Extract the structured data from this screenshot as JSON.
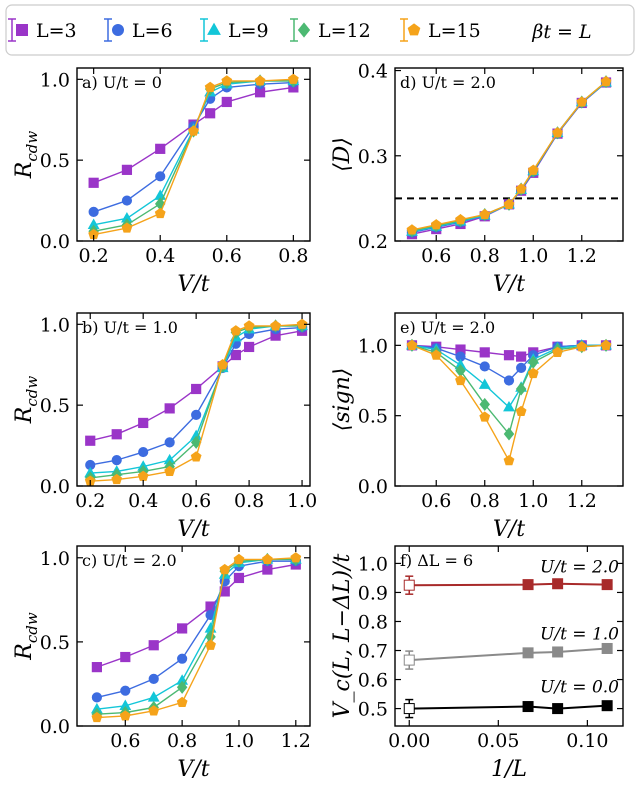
{
  "colors": {
    "L3": "#9a35c8",
    "L6": "#3d6ce0",
    "L9": "#13c6d8",
    "L12": "#4cb972",
    "L15": "#f5a31a",
    "U2": "#a82a2a",
    "U1": "#8a8a8a",
    "U0": "#000000"
  },
  "legend": {
    "entries": [
      {
        "key": "L3",
        "label": "L=3",
        "marker": "square"
      },
      {
        "key": "L6",
        "label": "L=6",
        "marker": "circle"
      },
      {
        "key": "L9",
        "label": "L=9",
        "marker": "triangle"
      },
      {
        "key": "L12",
        "label": "L=12",
        "marker": "diamond"
      },
      {
        "key": "L15",
        "label": "L=15",
        "marker": "pentagon"
      }
    ],
    "note": "βt = L"
  },
  "chart_data": [
    {
      "id": "a",
      "type": "line",
      "tag": "a) U/t = 0",
      "xlabel": "V/t",
      "ylabel": "R_cdw",
      "xlim": [
        0.15,
        0.85
      ],
      "ylim": [
        0.0,
        1.07
      ],
      "xticks": [
        "0.2",
        "0.4",
        "0.6",
        "0.8"
      ],
      "yticks": [
        "0.0",
        "0.5",
        "1.0"
      ],
      "x": [
        0.2,
        0.3,
        0.4,
        0.5,
        0.55,
        0.6,
        0.7,
        0.8
      ],
      "series": [
        {
          "key": "L3",
          "name": "L=3",
          "values": [
            0.36,
            0.44,
            0.57,
            0.72,
            0.79,
            0.86,
            0.92,
            0.95
          ]
        },
        {
          "key": "L6",
          "name": "L=6",
          "values": [
            0.18,
            0.25,
            0.4,
            0.71,
            0.88,
            0.95,
            0.97,
            0.98
          ]
        },
        {
          "key": "L9",
          "name": "L=9",
          "values": [
            0.1,
            0.14,
            0.28,
            0.69,
            0.92,
            0.97,
            0.99,
            0.99
          ]
        },
        {
          "key": "L12",
          "name": "L=12",
          "values": [
            0.06,
            0.1,
            0.23,
            0.68,
            0.94,
            0.98,
            0.99,
            0.99
          ]
        },
        {
          "key": "L15",
          "name": "L=15",
          "values": [
            0.04,
            0.08,
            0.17,
            0.68,
            0.95,
            0.99,
            0.99,
            1.0
          ]
        }
      ]
    },
    {
      "id": "d",
      "type": "line",
      "tag": "d) U/t = 2.0",
      "xlabel": "V/t",
      "ylabel": "⟨D⟩",
      "xlim": [
        0.43,
        1.37
      ],
      "ylim": [
        0.2,
        0.403
      ],
      "xticks": [
        "0.6",
        "0.8",
        "1.0",
        "1.2"
      ],
      "yticks": [
        "0.2",
        "0.3",
        "0.4"
      ],
      "hline": 0.25,
      "x": [
        0.5,
        0.6,
        0.7,
        0.8,
        0.9,
        0.95,
        1.0,
        1.1,
        1.2,
        1.3
      ],
      "series": [
        {
          "key": "L3",
          "name": "L=3",
          "values": [
            0.208,
            0.214,
            0.22,
            0.229,
            0.243,
            0.259,
            0.28,
            0.326,
            0.362,
            0.386
          ]
        },
        {
          "key": "L6",
          "name": "L=6",
          "values": [
            0.21,
            0.216,
            0.222,
            0.23,
            0.243,
            0.26,
            0.281,
            0.326,
            0.362,
            0.386
          ]
        },
        {
          "key": "L9",
          "name": "L=9",
          "values": [
            0.211,
            0.217,
            0.223,
            0.23,
            0.243,
            0.26,
            0.282,
            0.327,
            0.363,
            0.386
          ]
        },
        {
          "key": "L12",
          "name": "L=12",
          "values": [
            0.212,
            0.218,
            0.224,
            0.231,
            0.243,
            0.261,
            0.282,
            0.327,
            0.363,
            0.387
          ]
        },
        {
          "key": "L15",
          "name": "L=15",
          "values": [
            0.213,
            0.219,
            0.225,
            0.231,
            0.243,
            0.261,
            0.283,
            0.327,
            0.363,
            0.387
          ]
        }
      ]
    },
    {
      "id": "b",
      "type": "line",
      "tag": "b) U/t = 1.0",
      "xlabel": "V/t",
      "ylabel": "R_cdw",
      "xlim": [
        0.15,
        1.03
      ],
      "ylim": [
        0.0,
        1.07
      ],
      "xticks": [
        "0.2",
        "0.4",
        "0.6",
        "0.8",
        "1.0"
      ],
      "yticks": [
        "0.0",
        "0.5",
        "1.0"
      ],
      "x": [
        0.2,
        0.3,
        0.4,
        0.5,
        0.6,
        0.7,
        0.75,
        0.8,
        0.9,
        1.0
      ],
      "series": [
        {
          "key": "L3",
          "name": "L=3",
          "values": [
            0.28,
            0.32,
            0.39,
            0.48,
            0.6,
            0.74,
            0.81,
            0.86,
            0.93,
            0.96
          ]
        },
        {
          "key": "L6",
          "name": "L=6",
          "values": [
            0.13,
            0.16,
            0.21,
            0.27,
            0.44,
            0.73,
            0.88,
            0.94,
            0.97,
            0.98
          ]
        },
        {
          "key": "L9",
          "name": "L=9",
          "values": [
            0.08,
            0.09,
            0.12,
            0.16,
            0.31,
            0.73,
            0.92,
            0.97,
            0.99,
            0.99
          ]
        },
        {
          "key": "L12",
          "name": "L=12",
          "values": [
            0.05,
            0.07,
            0.09,
            0.12,
            0.27,
            0.74,
            0.95,
            0.98,
            0.99,
            0.99
          ]
        },
        {
          "key": "L15",
          "name": "L=15",
          "values": [
            0.03,
            0.04,
            0.06,
            0.09,
            0.18,
            0.75,
            0.96,
            0.99,
            0.99,
            1.0
          ]
        }
      ]
    },
    {
      "id": "e",
      "type": "line",
      "tag": "e) U/t = 2.0",
      "xlabel": "V/t",
      "ylabel": "⟨sign⟩",
      "xlim": [
        0.43,
        1.37
      ],
      "ylim": [
        0.0,
        1.23
      ],
      "xticks": [
        "0.6",
        "0.8",
        "1.0",
        "1.2"
      ],
      "yticks": [
        "0.0",
        "0.5",
        "1.0"
      ],
      "x": [
        0.5,
        0.6,
        0.7,
        0.8,
        0.9,
        0.95,
        1.0,
        1.1,
        1.2,
        1.3
      ],
      "series": [
        {
          "key": "L3",
          "name": "L=3",
          "values": [
            1.0,
            0.99,
            0.97,
            0.95,
            0.93,
            0.92,
            0.95,
            0.99,
            1.0,
            1.0
          ]
        },
        {
          "key": "L6",
          "name": "L=6",
          "values": [
            1.0,
            0.98,
            0.92,
            0.85,
            0.75,
            0.84,
            0.93,
            0.99,
            1.0,
            1.0
          ]
        },
        {
          "key": "L9",
          "name": "L=9",
          "values": [
            1.0,
            0.97,
            0.86,
            0.72,
            0.56,
            0.7,
            0.9,
            0.98,
            1.0,
            1.0
          ]
        },
        {
          "key": "L12",
          "name": "L=12",
          "values": [
            1.0,
            0.95,
            0.82,
            0.58,
            0.37,
            0.69,
            0.88,
            0.97,
            0.99,
            1.0
          ]
        },
        {
          "key": "L15",
          "name": "L=15",
          "values": [
            1.0,
            0.93,
            0.75,
            0.49,
            0.18,
            0.53,
            0.8,
            0.95,
            0.99,
            1.0
          ]
        }
      ]
    },
    {
      "id": "c",
      "type": "line",
      "tag": "c) U/t = 2.0",
      "xlabel": "V/t",
      "ylabel": "R_cdw",
      "xlim": [
        0.43,
        1.25
      ],
      "ylim": [
        0.0,
        1.07
      ],
      "xticks": [
        "0.6",
        "0.8",
        "1.0",
        "1.2"
      ],
      "yticks": [
        "0.0",
        "0.5",
        "1.0"
      ],
      "x": [
        0.5,
        0.6,
        0.7,
        0.8,
        0.9,
        0.95,
        1.0,
        1.1,
        1.2
      ],
      "series": [
        {
          "key": "L3",
          "name": "L=3",
          "values": [
            0.35,
            0.41,
            0.48,
            0.58,
            0.71,
            0.8,
            0.88,
            0.93,
            0.96
          ]
        },
        {
          "key": "L6",
          "name": "L=6",
          "values": [
            0.17,
            0.21,
            0.28,
            0.4,
            0.66,
            0.86,
            0.95,
            0.98,
            0.98
          ]
        },
        {
          "key": "L9",
          "name": "L=9",
          "values": [
            0.1,
            0.12,
            0.17,
            0.27,
            0.58,
            0.9,
            0.97,
            0.99,
            0.99
          ]
        },
        {
          "key": "L12",
          "name": "L=12",
          "values": [
            0.07,
            0.08,
            0.11,
            0.23,
            0.53,
            0.92,
            0.98,
            0.99,
            0.99
          ]
        },
        {
          "key": "L15",
          "name": "L=15",
          "values": [
            0.05,
            0.06,
            0.09,
            0.14,
            0.48,
            0.93,
            0.99,
            0.99,
            1.0
          ]
        }
      ]
    },
    {
      "id": "f",
      "type": "line",
      "tag": "f) ΔL = 6",
      "xlabel": "1/L",
      "ylabel": "V_c(L, L−ΔL)/t",
      "xlim": [
        -0.008,
        0.12
      ],
      "ylim": [
        0.44,
        1.06
      ],
      "xticks": [
        "0.00",
        "0.05",
        "0.10"
      ],
      "yticks": [
        "0.5",
        "0.6",
        "0.7",
        "0.8",
        "0.9",
        "1.0"
      ],
      "x": [
        0.0,
        0.0667,
        0.0833,
        0.1111
      ],
      "series": [
        {
          "key": "U2",
          "name": "U/t = 2.0",
          "values": [
            0.925,
            0.927,
            0.93,
            0.927
          ],
          "extrapolated": [
            true,
            false,
            false,
            false
          ]
        },
        {
          "key": "U1",
          "name": "U/t = 1.0",
          "values": [
            0.667,
            0.692,
            0.695,
            0.707
          ],
          "extrapolated": [
            true,
            false,
            false,
            false
          ]
        },
        {
          "key": "U0",
          "name": "U/t = 0.0",
          "values": [
            0.5,
            0.507,
            0.5,
            0.51
          ],
          "extrapolated": [
            true,
            false,
            false,
            false
          ]
        }
      ]
    }
  ]
}
